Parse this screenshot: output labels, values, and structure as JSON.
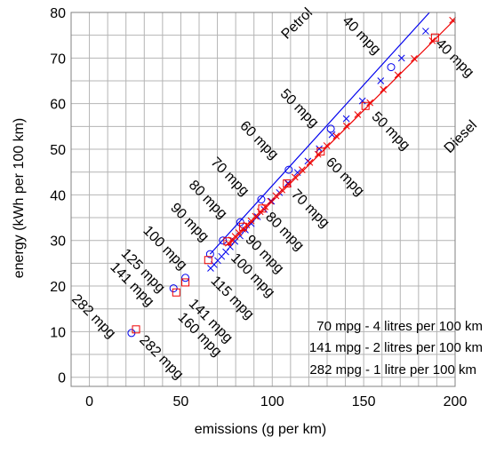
{
  "chart_data": {
    "type": "scatter",
    "title": "",
    "xlabel": "emissions (g per km)",
    "ylabel": "energy (kWh per 100 km)",
    "xlim": [
      -10,
      200
    ],
    "ylim": [
      -2,
      80
    ],
    "xticks": [
      0,
      50,
      100,
      150,
      200
    ],
    "yticks": [
      0,
      10,
      20,
      30,
      40,
      50,
      60,
      70,
      80
    ],
    "x_minor_step": 10,
    "y_minor_step": 5,
    "grid": true,
    "series": [
      {
        "name": "Petrol",
        "color": "#0000ee",
        "marker": "cross-x",
        "line": [
          [
            66,
            27
          ],
          [
            186,
            80
          ]
        ],
        "points": [
          {
            "x": 183.9,
            "y": 75.9
          },
          {
            "x": 170.7,
            "y": 70.0
          },
          {
            "x": 159.3,
            "y": 65.0
          },
          {
            "x": 149.3,
            "y": 60.6
          },
          {
            "x": 140.5,
            "y": 56.7
          },
          {
            "x": 132.7,
            "y": 53.2
          },
          {
            "x": 125.7,
            "y": 50.1
          },
          {
            "x": 119.5,
            "y": 47.4
          },
          {
            "x": 113.8,
            "y": 44.9
          },
          {
            "x": 108.6,
            "y": 42.6
          },
          {
            "x": 103.9,
            "y": 40.5
          },
          {
            "x": 99.6,
            "y": 38.6
          },
          {
            "x": 95.6,
            "y": 36.8
          },
          {
            "x": 91.9,
            "y": 35.2
          },
          {
            "x": 88.5,
            "y": 33.7
          },
          {
            "x": 85.3,
            "y": 32.3
          },
          {
            "x": 82.4,
            "y": 31.0
          },
          {
            "x": 79.6,
            "y": 29.8
          },
          {
            "x": 77.0,
            "y": 28.6
          },
          {
            "x": 74.6,
            "y": 27.5
          },
          {
            "x": 72.3,
            "y": 26.5
          },
          {
            "x": 70.2,
            "y": 25.6
          },
          {
            "x": 68.2,
            "y": 24.7
          },
          {
            "x": 66.3,
            "y": 23.9
          }
        ],
        "highlight_marker": "circle",
        "highlights": [
          {
            "x": 165.0,
            "y": 68.0
          },
          {
            "x": 132.0,
            "y": 54.5
          },
          {
            "x": 109.0,
            "y": 45.5
          },
          {
            "x": 94.0,
            "y": 39.0
          },
          {
            "x": 82.5,
            "y": 34.0
          },
          {
            "x": 73.0,
            "y": 30.0
          },
          {
            "x": 66.0,
            "y": 27.0
          },
          {
            "x": 46.0,
            "y": 19.5
          },
          {
            "x": 52.5,
            "y": 21.8
          },
          {
            "x": 23.0,
            "y": 9.7
          }
        ]
      },
      {
        "name": "Diesel",
        "color": "#ee0000",
        "marker": "cross-x",
        "line": [
          [
            76,
            29
          ],
          [
            200,
            78.5
          ]
        ],
        "points": [
          {
            "x": 198.6,
            "y": 78.3
          },
          {
            "x": 187.5,
            "y": 73.8
          },
          {
            "x": 177.6,
            "y": 69.9
          },
          {
            "x": 168.7,
            "y": 66.3
          },
          {
            "x": 160.7,
            "y": 63.1
          },
          {
            "x": 153.4,
            "y": 60.2
          },
          {
            "x": 146.7,
            "y": 57.6
          },
          {
            "x": 140.6,
            "y": 55.1
          },
          {
            "x": 135.0,
            "y": 52.9
          },
          {
            "x": 129.8,
            "y": 50.8
          },
          {
            "x": 125.0,
            "y": 48.9
          },
          {
            "x": 120.5,
            "y": 47.1
          },
          {
            "x": 116.3,
            "y": 45.5
          },
          {
            "x": 112.4,
            "y": 43.9
          },
          {
            "x": 108.7,
            "y": 42.4
          },
          {
            "x": 105.3,
            "y": 41.1
          },
          {
            "x": 102.0,
            "y": 39.8
          },
          {
            "x": 99.0,
            "y": 38.6
          },
          {
            "x": 96.1,
            "y": 37.4
          },
          {
            "x": 93.4,
            "y": 36.3
          },
          {
            "x": 90.8,
            "y": 35.3
          },
          {
            "x": 88.4,
            "y": 34.3
          },
          {
            "x": 86.0,
            "y": 33.4
          },
          {
            "x": 83.8,
            "y": 32.5
          },
          {
            "x": 81.7,
            "y": 31.7
          },
          {
            "x": 79.7,
            "y": 30.9
          },
          {
            "x": 77.8,
            "y": 30.1
          },
          {
            "x": 76.0,
            "y": 29.4
          }
        ],
        "highlight_marker": "square",
        "highlights": [
          {
            "x": 189.0,
            "y": 74.5
          },
          {
            "x": 151.0,
            "y": 59.5
          },
          {
            "x": 126.5,
            "y": 49.5
          },
          {
            "x": 108.0,
            "y": 42.5
          },
          {
            "x": 94.5,
            "y": 37.0
          },
          {
            "x": 84.0,
            "y": 33.0
          },
          {
            "x": 75.5,
            "y": 29.8
          },
          {
            "x": 65.0,
            "y": 25.7
          },
          {
            "x": 47.5,
            "y": 18.6
          },
          {
            "x": 52.5,
            "y": 20.8
          },
          {
            "x": 25.5,
            "y": 10.5
          }
        ]
      }
    ],
    "annotations": [
      {
        "text": "Petrol",
        "x": 108,
        "y": 74,
        "rotate": -45
      },
      {
        "text": "Diesel",
        "x": 197,
        "y": 49,
        "rotate": -45
      },
      {
        "text": "40 mpg",
        "x": 138,
        "y": 78,
        "rotate": 45
      },
      {
        "text": "40 mpg",
        "x": 189,
        "y": 73,
        "rotate": 45
      },
      {
        "text": "50 mpg",
        "x": 104,
        "y": 62,
        "rotate": 45
      },
      {
        "text": "50 mpg",
        "x": 154,
        "y": 57,
        "rotate": 45
      },
      {
        "text": "60 mpg",
        "x": 82,
        "y": 55,
        "rotate": 45
      },
      {
        "text": "60 mpg",
        "x": 129,
        "y": 47,
        "rotate": 45
      },
      {
        "text": "70 mpg",
        "x": 66,
        "y": 47,
        "rotate": 45
      },
      {
        "text": "70 mpg",
        "x": 110,
        "y": 40,
        "rotate": 45
      },
      {
        "text": "80 mpg",
        "x": 54,
        "y": 42,
        "rotate": 45
      },
      {
        "text": "80 mpg",
        "x": 96,
        "y": 35,
        "rotate": 45
      },
      {
        "text": "90 mpg",
        "x": 44,
        "y": 37,
        "rotate": 45
      },
      {
        "text": "90 mpg",
        "x": 85,
        "y": 30,
        "rotate": 45
      },
      {
        "text": "100 mpg",
        "x": 29,
        "y": 32,
        "rotate": 45
      },
      {
        "text": "100 mpg",
        "x": 77,
        "y": 26,
        "rotate": 45
      },
      {
        "text": "125 mpg",
        "x": 17,
        "y": 27,
        "rotate": 45
      },
      {
        "text": "115 mpg",
        "x": 66,
        "y": 21,
        "rotate": 45
      },
      {
        "text": "141 mpg",
        "x": 11,
        "y": 24,
        "rotate": 45
      },
      {
        "text": "141 mpg",
        "x": 54,
        "y": 16,
        "rotate": 45
      },
      {
        "text": "160 mpg",
        "x": 48,
        "y": 13,
        "rotate": 45
      },
      {
        "text": "282 mpg",
        "x": -10,
        "y": 17,
        "rotate": 45
      },
      {
        "text": "282 mpg",
        "x": 27,
        "y": 8,
        "rotate": 45
      }
    ],
    "notes": [
      "70 mpg - 4 litres per 100 km",
      "141 mpg - 2 litres per 100 km",
      "282 mpg - 1 litre per 100 km"
    ]
  }
}
